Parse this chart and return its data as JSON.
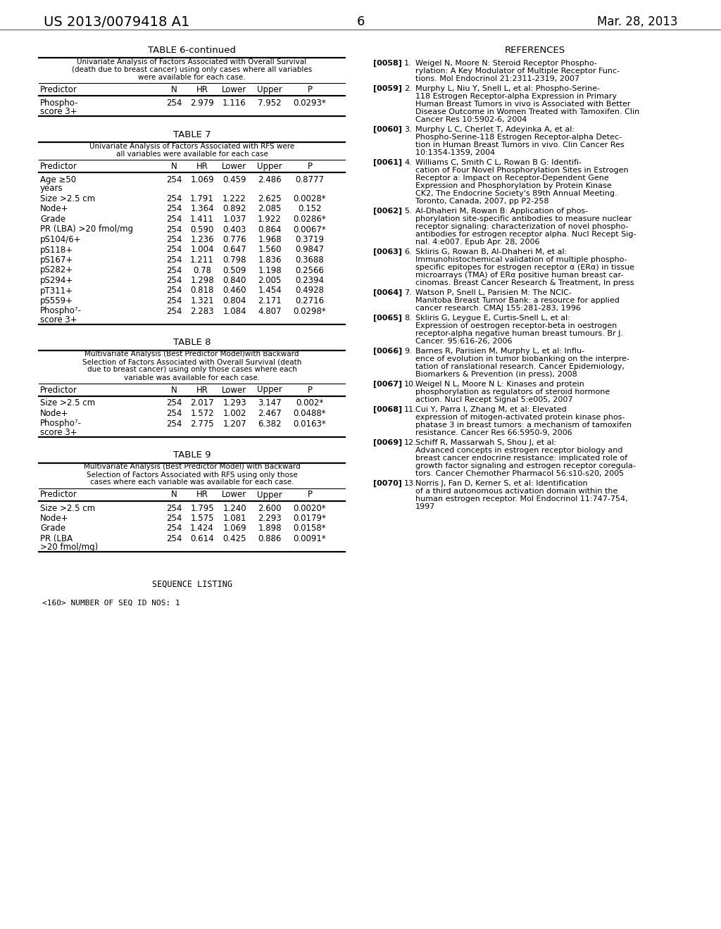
{
  "bg_color": "#ffffff",
  "patent_number": "US 2013/0079418 A1",
  "date": "Mar. 28, 2013",
  "page_number": "6",
  "table6_continued_title": "TABLE 6-continued",
  "table6_subtitle": "Univariate Analysis of Factors Associated with Overall Survival\n(death due to breast cancer) using only cases where all variables\nwere available for each case.",
  "table6_headers": [
    "Predictor",
    "N",
    "HR",
    "Lower",
    "Upper",
    "P"
  ],
  "table6_rows": [
    [
      "Phospho-\nscore 3+",
      "254",
      "2.979",
      "1.116",
      "7.952",
      "0.0293*"
    ]
  ],
  "table7_title": "TABLE 7",
  "table7_subtitle": "Univariate Analysis of Factors Associated with RFS were\nall variables were available for each case",
  "table7_headers": [
    "Predictor",
    "N",
    "HR",
    "Lower",
    "Upper",
    "P"
  ],
  "table7_rows": [
    [
      "Age ≥50\nyears",
      "254",
      "1.069",
      "0.459",
      "2.486",
      "0.8777"
    ],
    [
      "Size >2.5 cm",
      "254",
      "1.791",
      "1.222",
      "2.625",
      "0.0028*"
    ],
    [
      "Node+",
      "254",
      "1.364",
      "0.892",
      "2.085",
      "0.152"
    ],
    [
      "Grade",
      "254",
      "1.411",
      "1.037",
      "1.922",
      "0.0286*"
    ],
    [
      "PR (LBA) >20 fmol/mg",
      "254",
      "0.590",
      "0.403",
      "0.864",
      "0.0067*"
    ],
    [
      "pS104/6+",
      "254",
      "1.236",
      "0.776",
      "1.968",
      "0.3719"
    ],
    [
      "pS118+",
      "254",
      "1.004",
      "0.647",
      "1.560",
      "0.9847"
    ],
    [
      "pS167+",
      "254",
      "1.211",
      "0.798",
      "1.836",
      "0.3688"
    ],
    [
      "pS282+",
      "254",
      "0.78",
      "0.509",
      "1.198",
      "0.2566"
    ],
    [
      "pS294+",
      "254",
      "1.298",
      "0.840",
      "2.005",
      "0.2394"
    ],
    [
      "pT311+",
      "254",
      "0.818",
      "0.460",
      "1.454",
      "0.4928"
    ],
    [
      "pS559+",
      "254",
      "1.321",
      "0.804",
      "2.171",
      "0.2716"
    ],
    [
      "Phospho⁷-\nscore 3+",
      "254",
      "2.283",
      "1.084",
      "4.807",
      "0.0298*"
    ]
  ],
  "table8_title": "TABLE 8",
  "table8_subtitle": "Multivariate Analysis (Best Predictor Model)with Backward\nSelection of Factors Associated with Overall Survival (death\ndue to breast cancer) using only those cases where each\nvariable was available for each case.",
  "table8_headers": [
    "Predictor",
    "N",
    "HR",
    "Lower",
    "Upper",
    "P"
  ],
  "table8_rows": [
    [
      "Size >2.5 cm",
      "254",
      "2.017",
      "1.293",
      "3.147",
      "0.002*"
    ],
    [
      "Node+",
      "254",
      "1.572",
      "1.002",
      "2.467",
      "0.0488*"
    ],
    [
      "Phospho⁷-\nscore 3+",
      "254",
      "2.775",
      "1.207",
      "6.382",
      "0.0163*"
    ]
  ],
  "table9_title": "TABLE 9",
  "table9_subtitle": "Multivariate Analysis (Best Predictor Model) with Backward\nSelection of Factors Associated with RFS using only those\ncases where each variable was available for each case.",
  "table9_headers": [
    "Predictor",
    "N",
    "HR",
    "Lower",
    "Upper",
    "P"
  ],
  "table9_rows": [
    [
      "Size >2.5 cm",
      "254",
      "1.795",
      "1.240",
      "2.600",
      "0.0020*"
    ],
    [
      "Node+",
      "254",
      "1.575",
      "1.081",
      "2.293",
      "0.0179*"
    ],
    [
      "Grade",
      "254",
      "1.424",
      "1.069",
      "1.898",
      "0.0158*"
    ],
    [
      "PR (LBA\n>20 fmol/mg)",
      "254",
      "0.614",
      "0.425",
      "0.886",
      "0.0091*"
    ]
  ],
  "seq_listing": "SEQUENCE LISTING",
  "seq_id": "<160> NUMBER OF SEQ ID NOS: 1",
  "references_title": "REFERENCES",
  "references": [
    {
      "num": "[0058]",
      "text": "1. Weigel N, Moore N: Steroid Receptor Phospho-\nrylation: A Key Modulator of Multiple Receptor Func-\ntions. Mol Endocrinol 21:2311-2319, 2007"
    },
    {
      "num": "[0059]",
      "text": "2. Murphy L, Niu Y, Snell L, et al: Phospho-Serine-\n118 Estrogen Receptor-alpha Expression in Primary\nHuman Breast Tumors in vivo is Associated with Better\nDisease Outcome in Women Treated with Tamoxifen. Clin\nCancer Res 10:5902-6, 2004"
    },
    {
      "num": "[0060]",
      "text": "3. Murphy L C, Cherlet T, Adeyinka A, et al:\nPhospho-Serine-118 Estrogen Receptor-alpha Detec-\ntion in Human Breast Tumors in vivo. Clin Cancer Res\n10:1354-1359, 2004"
    },
    {
      "num": "[0061]",
      "text": "4. Williams C, Smith C L, Rowan B G: Identifi-\ncation of Four Novel Phosphorylation Sites in Estrogen\nReceptor a: Impact on Receptor-Dependent Gene\nExpression and Phosphorylation by Protein Kinase\nCK2, The Endocrine Society's 89th Annual Meeting.\nToronto, Canada, 2007, pp P2-258"
    },
    {
      "num": "[0062]",
      "text": "5. Al-Dhaheri M, Rowan B: Application of phos-\nphorylation site-specific antibodies to measure nuclear\nreceptor signaling: characterization of novel phospho-\nantibodies for estrogen receptor alpha. Nucl Recept Sig-\nnal. 4:e007. Epub Apr. 28, 2006"
    },
    {
      "num": "[0063]",
      "text": "6. Skliris G, Rowan B, Al-Dhaheri M, et al:\nImmunohistochemical validation of multiple phospho-\nspecific epitopes for estrogen receptor α (ERα) in tissue\nmicroarrays (TMA) of ERα positive human breast car-\ncinomas. Breast Cancer Research & Treatment, In press"
    },
    {
      "num": "[0064]",
      "text": "7. Watson P, Snell L, Parisien M: The NCIC-\nManitoba Breast Tumor Bank: a resource for applied\ncancer research. CMAJ 155:281-283, 1996"
    },
    {
      "num": "[0065]",
      "text": "8. Skliris G, Leygue E, Curtis-Snell L, et al:\nExpression of oestrogen receptor-beta in oestrogen\nreceptor-alpha negative human breast tumours. Br J.\nCancer. 95:616-26, 2006"
    },
    {
      "num": "[0066]",
      "text": "9. Barnes R, Parisien M, Murphy L, et al: Influ-\nence of evolution in tumor biobanking on the interpre-\ntation of ranslational research. Cancer Epidemiology,\nBiomarkers & Prevention (in press), 2008"
    },
    {
      "num": "[0067]",
      "text": "10. Weigel N L, Moore N L: Kinases and protein\nphosphorylation as regulators of steroid hormone\naction. Nucl Recept Signal 5:e005, 2007"
    },
    {
      "num": "[0068]",
      "text": "11. Cui Y, Parra I, Zhang M, et al: Elevated\nexpression of mitogen-activated protein kinase phos-\nphatase 3 in breast tumors: a mechanism of tamoxifen\nresistance. Cancer Res 66:5950-9, 2006"
    },
    {
      "num": "[0069]",
      "text": "12. Schiff R, Massarwah S, Shou J, et al:\nAdvanced concepts in estrogen receptor biology and\nbreast cancer endocrine resistance: implicated role of\ngrowth factor signaling and estrogen receptor coregula-\ntors. Cancer Chemother Pharmacol 56:s10-s20, 2005"
    },
    {
      "num": "[0070]",
      "text": "13. Norris J, Fan D, Kerner S, et al: Identification\nof a third autonomous activation domain within the\nhuman estrogen receptor. Mol Endocrinol 11:747-754,\n1997"
    }
  ]
}
